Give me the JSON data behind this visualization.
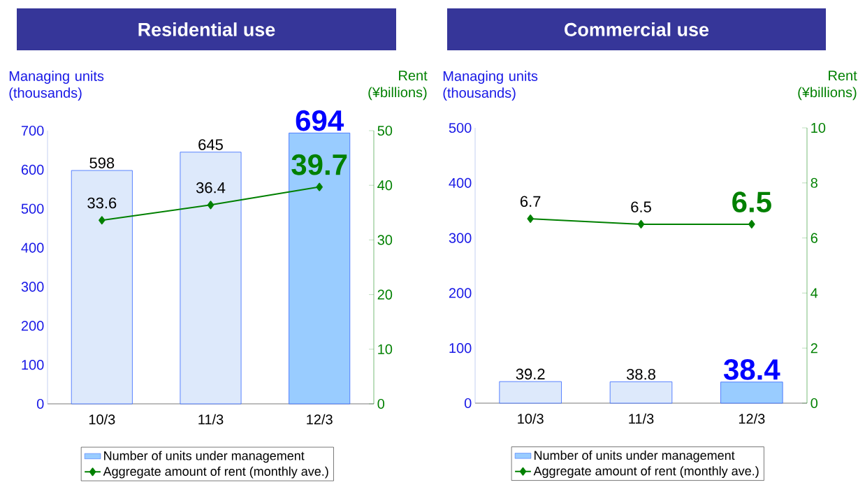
{
  "chart_data": [
    {
      "type": "bar",
      "title": "Residential use",
      "ylabel": "Managing units (thousands)",
      "y2label": "Rent (¥billions)",
      "categories": [
        "10/3",
        "11/3",
        "12/3"
      ],
      "series": [
        {
          "name": "Number of units under management",
          "color": "#99ccff",
          "colors": [
            "#dde9fb",
            "#dde9fb",
            "#99ccff"
          ],
          "values": [
            598,
            645,
            694
          ],
          "value_labels": [
            "598",
            "645",
            "694"
          ]
        },
        {
          "name": "Aggregate amount of rent (monthly ave.)",
          "type": "line",
          "axis": "y2",
          "color": "#008000",
          "marker": "diamond",
          "values": [
            33.6,
            36.4,
            39.7
          ],
          "value_labels": [
            "33.6",
            "36.4",
            "39.7"
          ]
        }
      ],
      "ylim": [
        0,
        700
      ],
      "yticks": [
        0,
        100,
        200,
        300,
        400,
        500,
        600,
        700
      ],
      "y2lim": [
        0,
        50
      ],
      "y2ticks": [
        0,
        10,
        20,
        30,
        40,
        50
      ],
      "legend": "bottom"
    },
    {
      "type": "bar",
      "title": "Commercial use",
      "ylabel": "Managing units (thousands)",
      "y2label": "Rent (¥billions)",
      "categories": [
        "10/3",
        "11/3",
        "12/3"
      ],
      "series": [
        {
          "name": "Number of units under management",
          "color": "#99ccff",
          "colors": [
            "#dde9fb",
            "#dde9fb",
            "#99ccff"
          ],
          "values": [
            39.2,
            38.8,
            38.4
          ],
          "value_labels": [
            "39.2",
            "38.8",
            "38.4"
          ]
        },
        {
          "name": "Aggregate amount of rent (monthly ave.)",
          "type": "line",
          "axis": "y2",
          "color": "#008000",
          "marker": "diamond",
          "values": [
            6.7,
            6.5,
            6.5
          ],
          "value_labels": [
            "6.7",
            "6.5",
            "6.5"
          ]
        }
      ],
      "ylim": [
        0,
        500
      ],
      "yticks": [
        0,
        100,
        200,
        300,
        400,
        500
      ],
      "y2lim": [
        0,
        10
      ],
      "y2ticks": [
        0,
        2,
        4,
        6,
        8,
        10
      ],
      "legend": "bottom"
    }
  ]
}
